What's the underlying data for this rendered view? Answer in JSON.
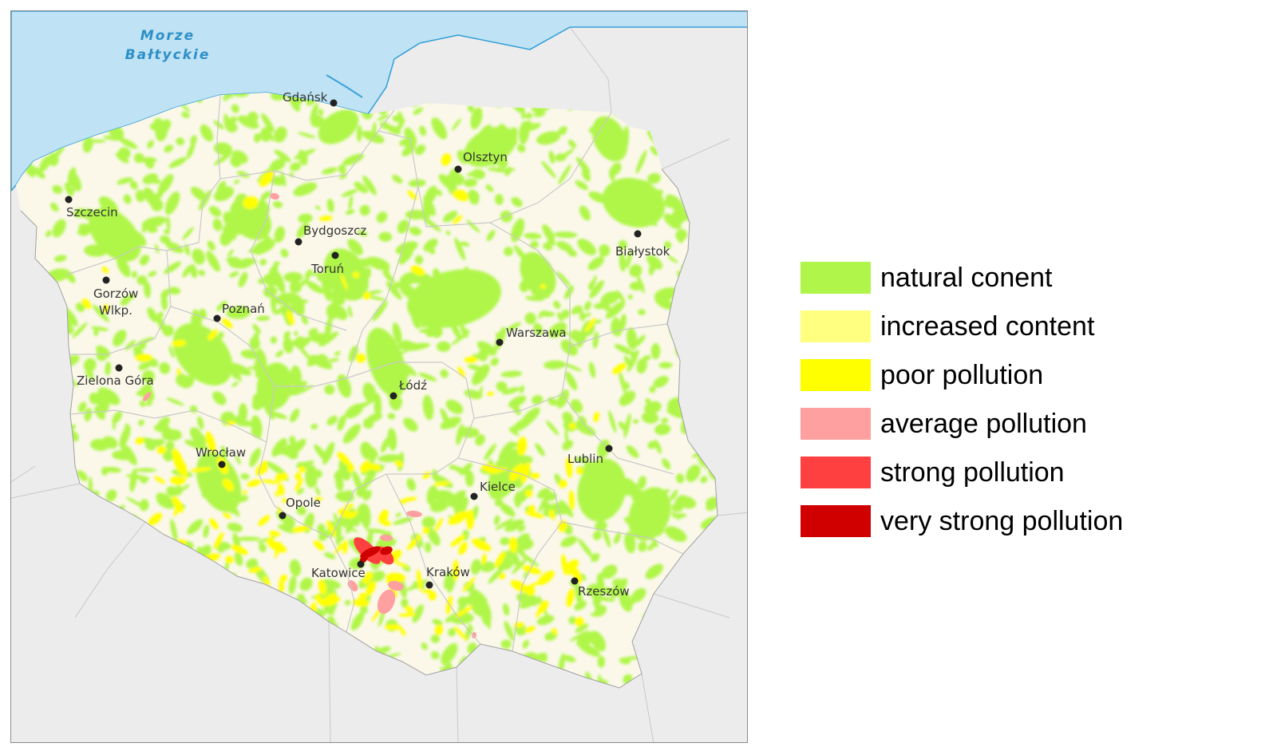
{
  "sea": {
    "label_line1": "Morze",
    "label_line2": "Bałtyckie"
  },
  "colors": {
    "sea": "#bfe3f4",
    "coast_line": "#3aa2d8",
    "land": "#fbf8ea",
    "neighbors": "#ececec",
    "border": "#bdbdbd",
    "natural": "#b0f64a",
    "increased": "#ffff80",
    "poor": "#ffff00",
    "average": "#ffa0a0",
    "strong": "#ff4040",
    "very_strong": "#d00000"
  },
  "cities": [
    {
      "name": "Gdańsk"
    },
    {
      "name": "Olsztyn"
    },
    {
      "name": "Szczecin"
    },
    {
      "name": "Bydgoszcz"
    },
    {
      "name": "Toruń"
    },
    {
      "name": "Białystok"
    },
    {
      "name": "Gorzów",
      "name2": "Wlkp."
    },
    {
      "name": "Poznań"
    },
    {
      "name": "Warszawa"
    },
    {
      "name": "Zielona Góra"
    },
    {
      "name": "Łódź"
    },
    {
      "name": "Wrocław"
    },
    {
      "name": "Lublin"
    },
    {
      "name": "Kielce"
    },
    {
      "name": "Opole"
    },
    {
      "name": "Katowice"
    },
    {
      "name": "Kraków"
    },
    {
      "name": "Rzeszów"
    }
  ],
  "legend": [
    {
      "label": "natural conent",
      "color": "#b0f64a"
    },
    {
      "label": "increased content",
      "color": "#ffff80"
    },
    {
      "label": "poor pollution",
      "color": "#ffff00"
    },
    {
      "label": "average pollution",
      "color": "#ffa0a0"
    },
    {
      "label": "strong pollution",
      "color": "#ff4040"
    },
    {
      "label": "very strong pollution",
      "color": "#d00000"
    }
  ]
}
